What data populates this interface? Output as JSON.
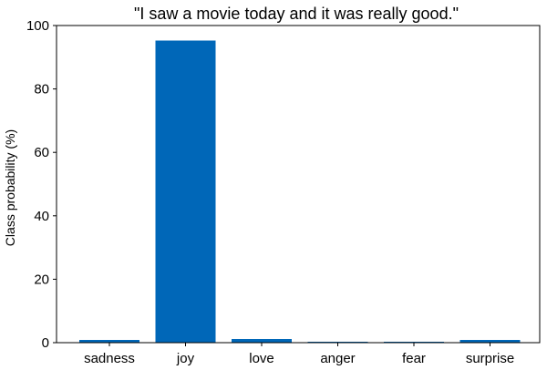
{
  "chart_data": {
    "type": "bar",
    "title": "\"I saw a movie today and it was really good.\"",
    "xlabel": "",
    "ylabel": "Class probability (%)",
    "categories": [
      "sadness",
      "joy",
      "love",
      "anger",
      "fear",
      "surprise"
    ],
    "values": [
      0.9,
      95.3,
      1.2,
      0.3,
      0.3,
      0.9
    ],
    "ylim": [
      0,
      100
    ],
    "yticks": [
      0,
      20,
      40,
      60,
      80,
      100
    ],
    "bar_color": "#0067b8",
    "grid": false,
    "legend": "none"
  }
}
